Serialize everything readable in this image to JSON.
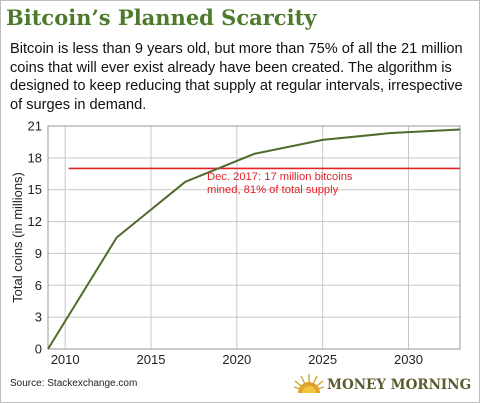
{
  "title": "Bitcoin’s Planned Scarcity",
  "subtitle": "Bitcoin is less than 9 years old, but more than 75% of all the 21 million coins that will ever exist already have been created. The algorithm is designed to keep reducing that supply at regular intervals, irrespective of surges in demand.",
  "source": "Source: Stackexchange.com",
  "logo_text": "MONEY MORNING",
  "colors": {
    "title": "#4d7a2b",
    "line": "#4f6b2c",
    "reference": "#e32126",
    "annotation": "#e32126",
    "grid": "#c8c8c8"
  },
  "chart_data": {
    "type": "line",
    "ylabel": "Total coins (in millions)",
    "xlabel": "",
    "xlim": [
      2009,
      2033
    ],
    "ylim": [
      0,
      21
    ],
    "xticks": [
      2010,
      2015,
      2020,
      2025,
      2030
    ],
    "yticks": [
      0,
      3,
      6,
      9,
      12,
      15,
      18,
      21
    ],
    "grid": true,
    "series": [
      {
        "x": [
          2009,
          2013,
          2017,
          2021,
          2025,
          2029,
          2033
        ],
        "y": [
          0,
          10.5,
          15.75,
          18.375,
          19.69,
          20.34,
          20.67
        ]
      }
    ],
    "reference_line": {
      "y": 17
    },
    "annotation": {
      "lines": [
        "Dec. 2017: 17 million bitcoins",
        "mined, 81% of total supply"
      ]
    }
  }
}
